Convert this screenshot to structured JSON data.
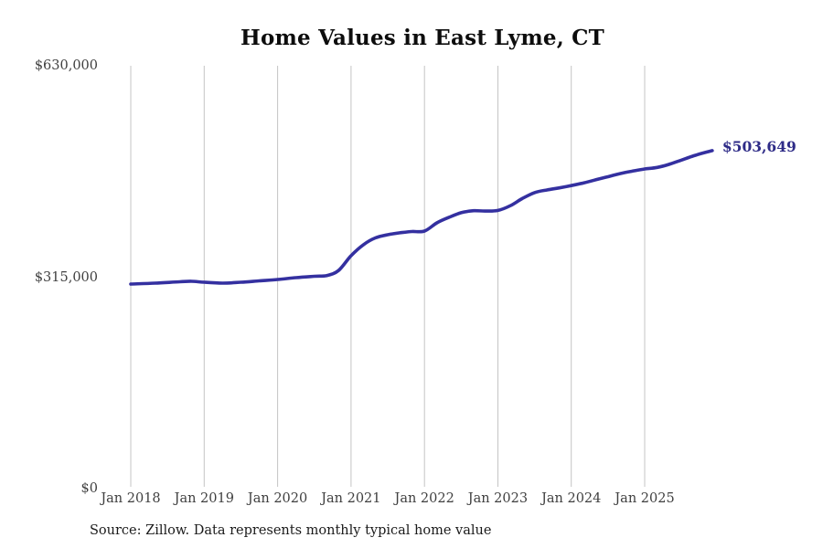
{
  "title": "Home Values in East Lyme, CT",
  "source_note": "Source: Zillow. Data represents monthly typical home value",
  "annotation": {
    "last_value_label": "$503,649"
  },
  "colors": {
    "background": "#ffffff",
    "line": "#3430a0",
    "annotation_text": "#2e2b87",
    "grid": "#c4c4c4",
    "tick_text": "#3f3f3f",
    "title_text": "#0d0d0d",
    "source_text": "#1a1a1a"
  },
  "chart_data": {
    "type": "line",
    "title": "Home Values in East Lyme, CT",
    "xlabel": "",
    "ylabel": "",
    "ylim": [
      0,
      630000
    ],
    "grid": "vertical-only",
    "legend": "none",
    "y_ticks": [
      {
        "value": 0,
        "label": "$0"
      },
      {
        "value": 315000,
        "label": "$315,000"
      },
      {
        "value": 630000,
        "label": "$630,000"
      }
    ],
    "x_ticks": [
      {
        "year": 2018,
        "label": "Jan 2018"
      },
      {
        "year": 2019,
        "label": "Jan 2019"
      },
      {
        "year": 2020,
        "label": "Jan 2020"
      },
      {
        "year": 2021,
        "label": "Jan 2021"
      },
      {
        "year": 2022,
        "label": "Jan 2022"
      },
      {
        "year": 2023,
        "label": "Jan 2023"
      },
      {
        "year": 2024,
        "label": "Jan 2024"
      },
      {
        "year": 2025,
        "label": "Jan 2025"
      }
    ],
    "series": [
      {
        "name": "Monthly typical home value",
        "points": [
          [
            2018.0,
            304800
          ],
          [
            2018.33,
            306100
          ],
          [
            2018.67,
            308200
          ],
          [
            2018.83,
            308900
          ],
          [
            2019.0,
            307500
          ],
          [
            2019.25,
            306100
          ],
          [
            2019.5,
            307500
          ],
          [
            2019.75,
            309500
          ],
          [
            2020.0,
            311600
          ],
          [
            2020.25,
            314300
          ],
          [
            2020.5,
            316400
          ],
          [
            2020.67,
            317500
          ],
          [
            2020.83,
            325000
          ],
          [
            2021.0,
            347000
          ],
          [
            2021.17,
            363500
          ],
          [
            2021.33,
            373500
          ],
          [
            2021.5,
            378300
          ],
          [
            2021.67,
            381200
          ],
          [
            2021.83,
            383000
          ],
          [
            2022.0,
            383700
          ],
          [
            2022.17,
            396000
          ],
          [
            2022.33,
            404000
          ],
          [
            2022.5,
            411000
          ],
          [
            2022.67,
            414000
          ],
          [
            2022.83,
            413500
          ],
          [
            2023.0,
            414500
          ],
          [
            2023.17,
            421500
          ],
          [
            2023.33,
            432000
          ],
          [
            2023.5,
            441000
          ],
          [
            2023.67,
            445000
          ],
          [
            2023.83,
            448000
          ],
          [
            2024.0,
            451500
          ],
          [
            2024.17,
            455500
          ],
          [
            2024.33,
            460000
          ],
          [
            2024.5,
            464700
          ],
          [
            2024.67,
            469500
          ],
          [
            2024.83,
            473000
          ],
          [
            2025.0,
            476200
          ],
          [
            2025.17,
            478500
          ],
          [
            2025.33,
            483000
          ],
          [
            2025.5,
            489500
          ],
          [
            2025.67,
            496000
          ],
          [
            2025.83,
            501000
          ],
          [
            2025.92,
            503649
          ]
        ]
      }
    ],
    "last_point": {
      "x": 2025.92,
      "value": 503649,
      "label": "$503,649"
    }
  }
}
